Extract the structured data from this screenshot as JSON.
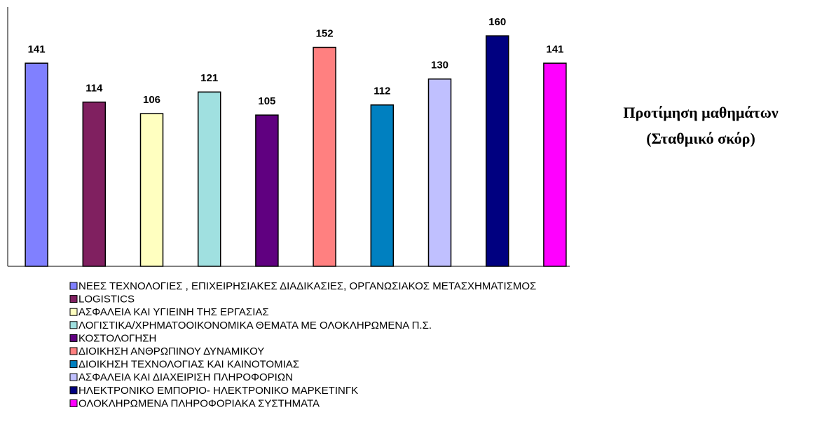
{
  "chart_data": {
    "type": "bar",
    "title": [
      "Προτίμηση μαθημάτων",
      "(Σταθμικό σκόρ)"
    ],
    "ylim": [
      0,
      180
    ],
    "series": [
      {
        "name": "ΝΕΕΣ ΤΕΧΝΟΛΟΓΙΕΣ , ΕΠΙΧΕΙΡΗΣΙΑΚΕΣ ΔΙΑΔΙΚΑΣΙΕΣ, ΟΡΓΑΝΩΣΙΑΚΟΣ ΜΕΤΑΣΧΗΜΑΤΙΣΜΟΣ",
        "color": "#8080ff",
        "values": [
          141
        ]
      },
      {
        "name": "LOGISTICS",
        "color": "#802060",
        "values": [
          114
        ]
      },
      {
        "name": "ΑΣΦΑΛΕΙΑ ΚΑΙ ΥΓΙΕΙΝΗ ΤΗΣ ΕΡΓΑΣΙΑΣ",
        "color": "#ffffc0",
        "values": [
          106
        ]
      },
      {
        "name": "ΛΟΓΙΣΤΙΚΑ/ΧΡΗΜΑΤΟΟΙΚΟΝΟΜΙΚΑ ΘΕΜΑΤΑ ΜΕ ΟΛΟΚΛΗΡΩΜΕΝΑ Π.Σ.",
        "color": "#a0e0e0",
        "values": [
          121
        ]
      },
      {
        "name": "ΚΟΣΤΟΛΟΓΗΣΗ",
        "color": "#600080",
        "values": [
          105
        ]
      },
      {
        "name": "ΔΙΟΙΚΗΣΗ ΑΝΘΡΩΠΙΝΟΥ ΔΥΝΑΜΙΚΟΥ",
        "color": "#ff8080",
        "values": [
          152
        ]
      },
      {
        "name": "ΔΙΟΙΚΗΣΗ ΤΕΧΝΟΛΟΓΙΑΣ ΚΑΙ ΚΑΙΝΟΤΟΜΙΑΣ",
        "color": "#0080c0",
        "values": [
          112
        ]
      },
      {
        "name": "ΑΣΦΑΛΕΙΑ ΚΑΙ ΔΙΑΧΕΙΡΙΣΗ ΠΛΗΡΟΦΟΡΙΩΝ",
        "color": "#c0c0ff",
        "values": [
          130
        ]
      },
      {
        "name": "ΗΛΕΚΤΡΟΝΙΚΟ ΕΜΠΟΡΙΟ- ΗΛΕΚΤΡΟΝΙΚΟ ΜΑΡΚΕΤΙΝΓΚ",
        "color": "#000080",
        "values": [
          160
        ]
      },
      {
        "name": "ΟΛΟΚΛΗΡΩΜΕΝΑ ΠΛΗΡΟΦΟΡΙΑΚΑ ΣΥΣΤΗΜΑΤΑ",
        "color": "#ff00ff",
        "values": [
          141
        ]
      }
    ]
  }
}
